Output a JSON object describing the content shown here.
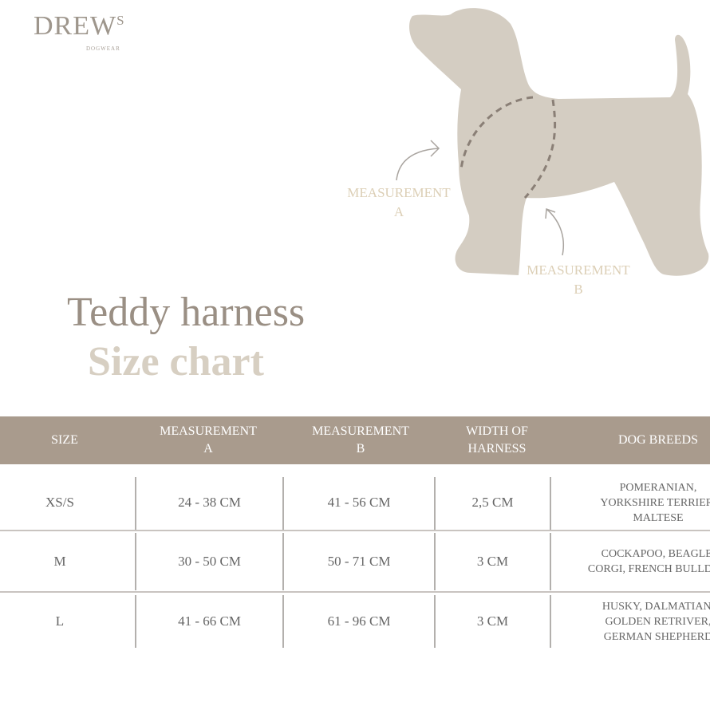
{
  "brand": {
    "name": "DREW",
    "suffix": "S",
    "tagline": "DOGWEAR"
  },
  "colors": {
    "header_band": "#a99b8d",
    "dog_silhouette": "#d4cdc2",
    "title_dark": "#9a8f84",
    "title_light": "#d7cfc2",
    "measurement_label": "#dccfb6"
  },
  "illustration": {
    "measurement_a": {
      "line1": "MEASUREMENT",
      "line2": "A"
    },
    "measurement_b": {
      "line1": "MEASUREMENT",
      "line2": "B"
    }
  },
  "title": {
    "line1": "Teddy harness",
    "line2": "Size chart"
  },
  "table": {
    "headers": [
      {
        "line1": "SIZE",
        "line2": ""
      },
      {
        "line1": "MEASUREMENT",
        "line2": "A"
      },
      {
        "line1": "MEASUREMENT",
        "line2": "B"
      },
      {
        "line1": "WIDTH OF",
        "line2": "HARNESS"
      },
      {
        "line1": "DOG BREEDS",
        "line2": ""
      }
    ],
    "rows": [
      {
        "size": "XS/S",
        "a": "24 - 38 CM",
        "b": "41 - 56 CM",
        "width": "2,5 CM",
        "breeds": [
          "POMERANIAN,",
          "YORKSHIRE TERRIER,",
          "MALTESE"
        ]
      },
      {
        "size": "M",
        "a": "30 - 50 CM",
        "b": "50 - 71 CM",
        "width": "3 CM",
        "breeds": [
          "COCKAPOO, BEAGLE,",
          "CORGI, FRENCH BULLDOG"
        ]
      },
      {
        "size": "L",
        "a": "41 - 66 CM",
        "b": "61 - 96 CM",
        "width": "3 CM",
        "breeds": [
          "HUSKY, DALMATIAN,",
          "GOLDEN RETRIVER,",
          "GERMAN SHEPHERD"
        ]
      }
    ]
  }
}
